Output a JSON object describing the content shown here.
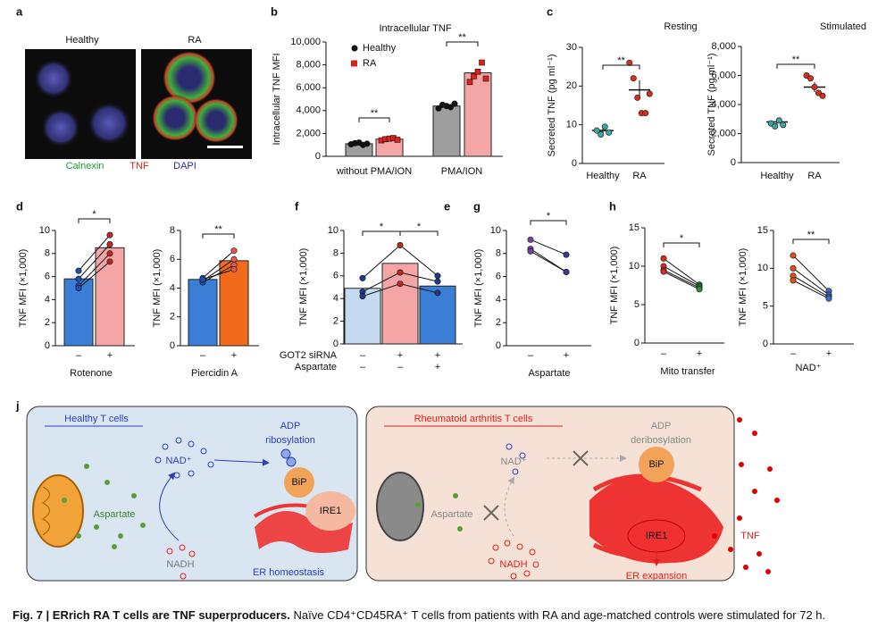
{
  "panel_letters": [
    "a",
    "b",
    "c",
    "d",
    "e",
    "f",
    "g",
    "h",
    "j"
  ],
  "micrographs": {
    "labels": [
      "Healthy",
      "RA"
    ],
    "stains": [
      {
        "name": "Calnexin",
        "color": "#1a9e3a"
      },
      {
        "name": "TNF",
        "color": "#e0201a"
      },
      {
        "name": "DAPI",
        "color": "#2a2aa8"
      }
    ]
  },
  "plots": [
    {
      "title": "Intracellular TNF",
      "ylabel": "Intracellular TNF MFI",
      "ylim": [
        0,
        10000
      ],
      "yticks": [
        0,
        {
          "value": 2000,
          "label": "2,000"
        },
        {
          "value": 4000,
          "label": "4,000"
        },
        {
          "value": 6000,
          "label": "6,000"
        },
        {
          "value": 8000,
          "label": "8,000"
        },
        {
          "value": 10000,
          "label": "10,000"
        }
      ],
      "categories": [
        "without PMA/ION",
        "PMA/ION"
      ],
      "legend": [
        {
          "name": "Healthy",
          "color": "#111111",
          "marker": "circle"
        },
        {
          "name": "RA",
          "color": "#e0201a",
          "marker": "square"
        }
      ],
      "groups": [
        {
          "color": "#9e9e9e",
          "bar": 1100,
          "point_color": "#111111",
          "marker": "circle",
          "points": [
            1050,
            1150,
            1200,
            1000,
            1100
          ]
        },
        {
          "color": "#f4a6a6",
          "bar": 1500,
          "point_color": "#e0201a",
          "marker": "square",
          "points": [
            1400,
            1500,
            1550,
            1600,
            1450
          ]
        },
        {
          "color": "#9e9e9e",
          "bar": 4400,
          "point_color": "#111111",
          "marker": "circle",
          "points": [
            4200,
            4500,
            4400,
            4300,
            4600
          ]
        },
        {
          "color": "#f4a6a6",
          "bar": 7300,
          "point_color": "#e0201a",
          "marker": "square",
          "points": [
            6500,
            7000,
            7400,
            8200,
            6800
          ]
        }
      ],
      "significance": [
        "**",
        "**"
      ]
    },
    {
      "title": "Resting",
      "ylabel": "Secreted TNF (pg ml⁻¹)",
      "ylim": [
        0,
        30
      ],
      "yticks": [
        0,
        10,
        20,
        30
      ],
      "groups": [
        {
          "name": "Healthy",
          "mean": 8.5,
          "error": 0.8,
          "point_color": "#3aa6a0",
          "marker": "circle",
          "points": [
            8.5,
            7.5,
            9.5,
            8.0
          ]
        },
        {
          "name": "RA",
          "mean": 19,
          "error": 2.5,
          "point_color": "#d7301f",
          "marker": "circle",
          "points": [
            26,
            22,
            17,
            13,
            13,
            18
          ]
        }
      ],
      "significance": [
        "**"
      ]
    },
    {
      "title": "Stimulated",
      "ylabel": "Secreted TNF (pg ml⁻¹)",
      "ylim": [
        0,
        8000
      ],
      "yticks": [
        0,
        {
          "value": 2000,
          "label": "2,000"
        },
        {
          "value": 4000,
          "label": "4,000"
        },
        {
          "value": 6000,
          "label": "6,000"
        },
        {
          "value": 8000,
          "label": "8,000"
        }
      ],
      "groups": [
        {
          "name": "Healthy",
          "mean": 2800,
          "error": 200,
          "point_color": "#3aa6a0",
          "marker": "circle",
          "points": [
            2700,
            2500,
            2900,
            2600
          ]
        },
        {
          "name": "RA",
          "mean": 5200,
          "error": 350,
          "point_color": "#d7301f",
          "marker": "circle",
          "points": [
            6000,
            5800,
            5200,
            4800,
            4600
          ]
        }
      ],
      "significance": [
        "**"
      ]
    },
    {
      "ylabel": "TNF MFI (×1,000)",
      "ylim": [
        0,
        10
      ],
      "yticks": [
        0,
        2,
        4,
        6,
        8,
        10
      ],
      "xlabel": "Rotenone",
      "paired": true,
      "groups": [
        {
          "condition": "–",
          "color": "#3a7fd5",
          "bar": 5.8,
          "point_color": "#1f4fa8",
          "marker": "circle",
          "points": [
            6.5,
            5.8,
            5.2,
            5.0
          ]
        },
        {
          "condition": "+",
          "color": "#f4a6a6",
          "bar": 8.5,
          "point_color": "#c0281f",
          "marker": "circle",
          "points": [
            9.6,
            8.8,
            8.0,
            7.3
          ]
        }
      ],
      "significance": [
        "*"
      ]
    },
    {
      "ylabel": "TNF MFI (×1,000)",
      "ylim": [
        0,
        8
      ],
      "yticks": [
        0,
        2,
        4,
        6,
        8
      ],
      "xlabel": "Piercidin A",
      "paired": true,
      "groups": [
        {
          "condition": "–",
          "color": "#3a7fd5",
          "bar": 4.6,
          "point_color": "#1f4fa8",
          "marker": "circle",
          "points": [
            4.7,
            4.5,
            4.4,
            4.6
          ]
        },
        {
          "condition": "+",
          "color": "#f26b1d",
          "bar": 5.9,
          "point_color": "#e05a50",
          "marker": "circle",
          "points": [
            6.6,
            6.0,
            5.6,
            5.3
          ]
        }
      ],
      "significance": [
        "**"
      ]
    },
    {
      "ylabel": "TNF MFI (×1,000)",
      "ylim": [
        0,
        10
      ],
      "yticks": [
        0,
        2,
        4,
        6,
        8,
        10
      ],
      "paired": true,
      "rows": [
        {
          "label": "GOT2 siRNA",
          "values": [
            "–",
            "+",
            "+"
          ]
        },
        {
          "label": "Aspartate",
          "values": [
            "–",
            "–",
            "+"
          ]
        }
      ],
      "groups": [
        {
          "color": "#c6dbf2",
          "bar": 4.9,
          "point_color": "#1f3a8a",
          "marker": "circle",
          "points": [
            5.8,
            4.6,
            4.2
          ]
        },
        {
          "color": "#f4a6a6",
          "bar": 7.1,
          "point_color": "#c0281f",
          "marker": "circle",
          "points": [
            8.7,
            6.3,
            5.3
          ]
        },
        {
          "color": "#3a7fd5",
          "bar": 5.1,
          "point_color": "#1f3a8a",
          "marker": "circle",
          "points": [
            6.0,
            5.5,
            4.5
          ]
        }
      ],
      "significance": [
        "*",
        "*"
      ]
    },
    {
      "ylabel": "TNF MFI (×1,000)",
      "ylim": [
        0,
        10
      ],
      "yticks": [
        0,
        2,
        4,
        6,
        8,
        10
      ],
      "xlabel": "Aspartate",
      "paired": true,
      "groups": [
        {
          "condition": "–",
          "point_color": "#7a3fa0",
          "marker": "circle",
          "points": [
            9.2,
            8.4,
            8.2
          ]
        },
        {
          "condition": "+",
          "point_color": "#3a3a9a",
          "marker": "circle",
          "points": [
            7.9,
            6.4,
            6.4
          ]
        }
      ],
      "significance": [
        "*"
      ]
    },
    {
      "ylabel": "TNF MFI (×1,000)",
      "ylim": [
        0,
        15
      ],
      "yticks": [
        0,
        5,
        10,
        15
      ],
      "xlabel": "Mito transfer",
      "paired": true,
      "groups": [
        {
          "condition": "–",
          "point_color": "#d7301f",
          "marker": "circle",
          "points": [
            11,
            10,
            9.5,
            9.3
          ]
        },
        {
          "condition": "+",
          "point_color": "#2e8b3a",
          "marker": "circle",
          "points": [
            7.6,
            7.4,
            7.2,
            7.0
          ]
        }
      ],
      "significance": [
        "*"
      ]
    },
    {
      "ylabel": "TNF MFI (×1,000)",
      "ylim": [
        0,
        15
      ],
      "yticks": [
        0,
        5,
        10,
        15
      ],
      "xlabel": "NAD⁺",
      "paired": true,
      "groups": [
        {
          "condition": "–",
          "point_color": "#e0501a",
          "marker": "circle",
          "points": [
            11.7,
            10.0,
            9.0,
            8.4
          ]
        },
        {
          "condition": "+",
          "point_color": "#3a6fc5",
          "marker": "circle",
          "points": [
            7.0,
            6.5,
            6.2,
            6.0
          ]
        }
      ],
      "significance": [
        "**"
      ]
    }
  ],
  "diagram": {
    "healthy": {
      "title": "Healthy T cells",
      "aspartate": "Aspartate",
      "nad": "NAD⁺",
      "adp": "ADP",
      "ribosylation": "ribosylation",
      "bip": "BiP",
      "ire1": "IRE1",
      "nadh": "NADH",
      "outcome": "ER homeostasis"
    },
    "ra": {
      "title": "Rheumatoid arthritis T cells",
      "aspartate": "Aspartate",
      "nad": "NAD⁺",
      "adp": "ADP",
      "ribosylation": "deribosylation",
      "bip": "BiP",
      "ire1": "IRE1",
      "nadh": "NADH",
      "outcome": "ER expansion",
      "tnf": "TNF"
    }
  },
  "caption": {
    "bold": "Fig. 7 | ERrich RA T cells are TNF superproducers.",
    "text": " Naïve CD4⁺CD45RA⁺ T cells from patients with RA and age-matched controls were stimulated for 72 h."
  }
}
